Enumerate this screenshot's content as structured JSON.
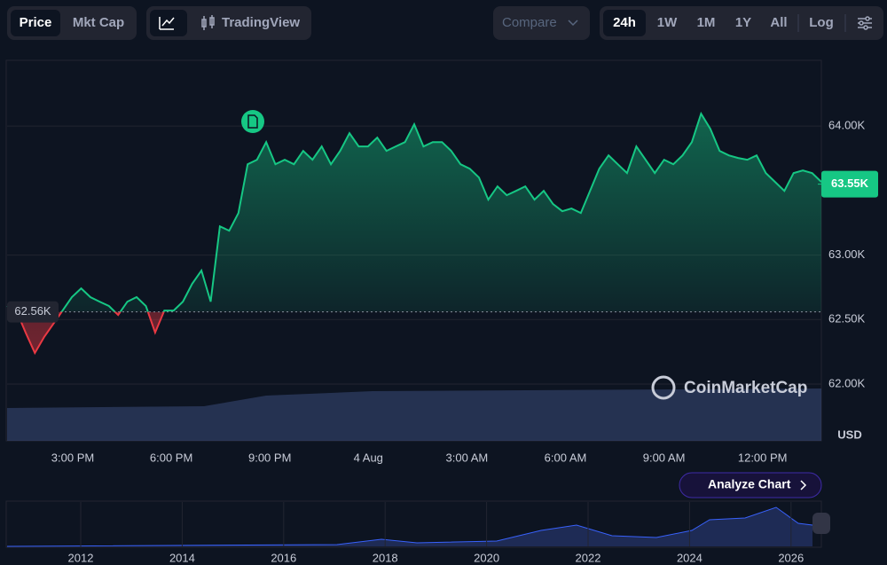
{
  "toolbar": {
    "type_tabs": [
      "Price",
      "Mkt Cap"
    ],
    "tradingview": "TradingView",
    "compare": "Compare",
    "ranges": [
      "24h",
      "1W",
      "1M",
      "1Y",
      "All"
    ],
    "log": "Log"
  },
  "chart_data": {
    "type": "line",
    "currency": "USD",
    "watermark": "CoinMarketCap",
    "x_labels": [
      "3:00 PM",
      "6:00 PM",
      "9:00 PM",
      "4 Aug",
      "3:00 AM",
      "6:00 AM",
      "9:00 AM",
      "12:00 PM"
    ],
    "values": [
      62605,
      62570,
      62399,
      62241,
      62364,
      62467,
      62570,
      62674,
      62742,
      62674,
      62639,
      62605,
      62536,
      62639,
      62674,
      62605,
      62399,
      62570,
      62570,
      62639,
      62777,
      62880,
      62639,
      63223,
      63189,
      63326,
      63704,
      63739,
      63876,
      63704,
      63739,
      63704,
      63808,
      63739,
      63842,
      63704,
      63808,
      63945,
      63842,
      63842,
      63911,
      63808,
      63842,
      63876,
      64014,
      63842,
      63876,
      63876,
      63808,
      63704,
      63670,
      63601,
      63430,
      63533,
      63464,
      63498,
      63533,
      63430,
      63498,
      63395,
      63340,
      63361,
      63326,
      63498,
      63670,
      63773,
      63704,
      63636,
      63842,
      63739,
      63636,
      63739,
      63704,
      63773,
      63876,
      64096,
      63979,
      63808,
      63773,
      63753,
      63739,
      63773,
      63636,
      63567,
      63498,
      63636,
      63656,
      63636,
      63567
    ],
    "ylim": [
      61560,
      64510
    ],
    "yticks": [
      {
        "value": 62000,
        "label": "62.00K"
      },
      {
        "value": 62500,
        "label": "62.50K"
      },
      {
        "value": 63000,
        "label": "63.00K"
      },
      {
        "value": 64000,
        "label": "64.00K"
      }
    ],
    "baseline": {
      "value": 62560,
      "label": "62.56K"
    },
    "current": {
      "value": 63550,
      "label": "63.55K"
    },
    "up_color": "#16c784",
    "down_color": "#ea3943",
    "grid": true
  },
  "analyze_button": "Analyze Chart",
  "overview_years": [
    "2012",
    "2014",
    "2016",
    "2018",
    "2020",
    "2022",
    "2024",
    "2026"
  ]
}
